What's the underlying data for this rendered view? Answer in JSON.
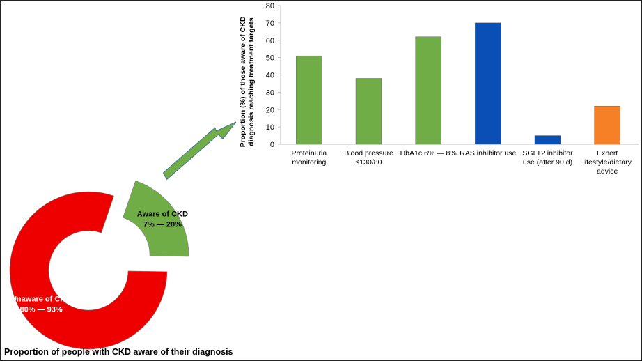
{
  "colors": {
    "aware": "#70AD47",
    "unaware": "#EE0000",
    "green_bar": "#70AD47",
    "blue_bar": "#0A4FB5",
    "orange_bar": "#F58025",
    "arrow": "#70AD47",
    "axis": "#BFBFBF"
  },
  "chart_data": [
    {
      "type": "pie",
      "variant": "donut",
      "title": "Proportion of people with CKD aware of their diagnosis",
      "slices": [
        {
          "label": "Aware of CKD",
          "range_label": "7% — 20%",
          "value": 20,
          "exploded": true,
          "color": "#70AD47"
        },
        {
          "label": "Unaware of CKD",
          "range_label": "80% — 93%",
          "value": 80,
          "exploded": false,
          "color": "#EE0000"
        }
      ]
    },
    {
      "type": "bar",
      "ylabel_line1": "Proportion (%) of those aware of CKD",
      "ylabel_line2": "diagnosis reaching treatment targets",
      "ylim": [
        0,
        80
      ],
      "yticks": [
        0,
        10,
        20,
        30,
        40,
        50,
        60,
        70,
        80
      ],
      "grid": false,
      "categories": [
        [
          "Proteinuria",
          "monitoring"
        ],
        [
          "Blood pressure",
          "≤130/80"
        ],
        [
          "HbA1c 6% — 8%"
        ],
        [
          "RAS inhibitor use"
        ],
        [
          "SGLT2 inhibitor",
          "use (after 90 d)"
        ],
        [
          "Expert",
          "lifestyle/dietary",
          "advice"
        ]
      ],
      "values": [
        51,
        38,
        62,
        70,
        5,
        22
      ],
      "bar_colors": [
        "#70AD47",
        "#70AD47",
        "#70AD47",
        "#0A4FB5",
        "#0A4FB5",
        "#F58025"
      ]
    }
  ]
}
